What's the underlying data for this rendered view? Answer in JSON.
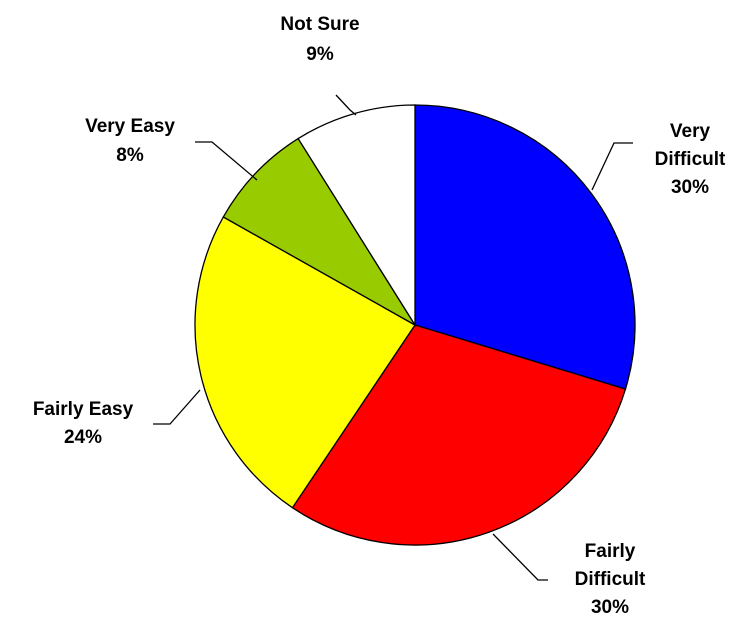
{
  "chart_data": {
    "type": "pie",
    "categories": [
      "Very Difficult",
      "Fairly Difficult",
      "Fairly Easy",
      "Very Easy",
      "Not Sure"
    ],
    "values": [
      30,
      30,
      24,
      8,
      9
    ],
    "value_labels": [
      "30%",
      "30%",
      "24%",
      "8%",
      "9%"
    ],
    "colors": [
      "#0000ff",
      "#ff0000",
      "#ffff00",
      "#99cc00",
      "#ffffff"
    ]
  }
}
